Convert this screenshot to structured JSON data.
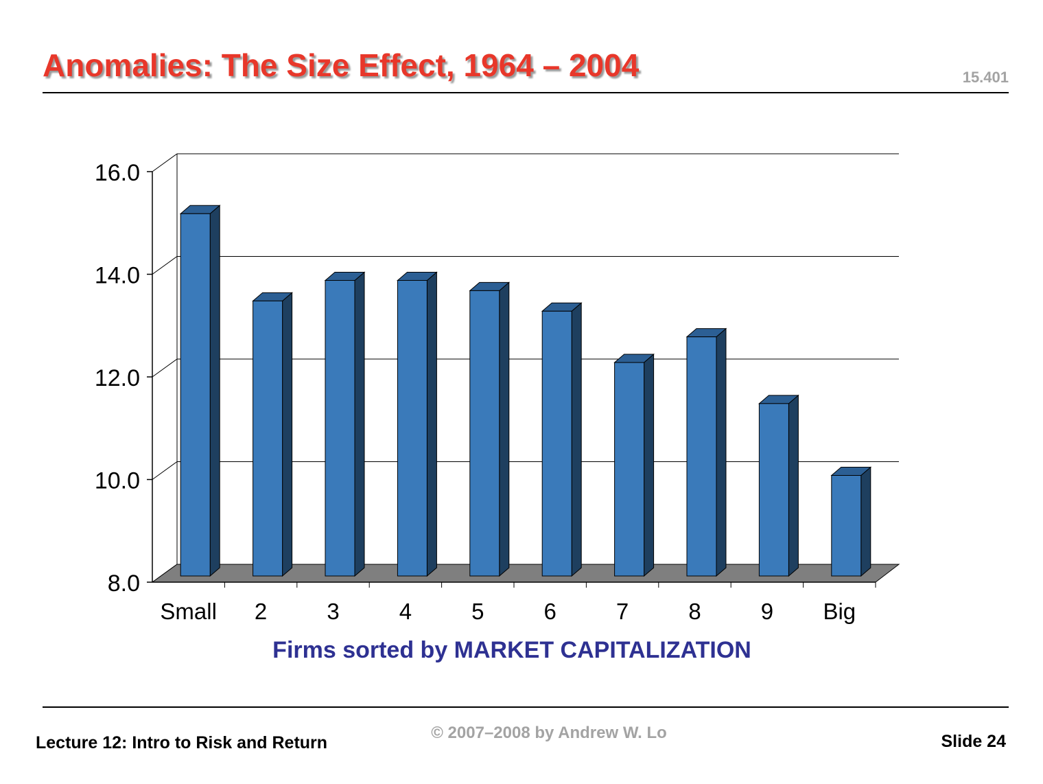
{
  "slide": {
    "title": "Anomalies: The Size Effect, 1964 – 2004",
    "course": "15.401",
    "footer_left": "Lecture 12: Intro to Risk and Return",
    "footer_center": "© 2007–2008 by Andrew W. Lo",
    "footer_right": "Slide 24"
  },
  "chart_data": {
    "type": "bar",
    "title": "",
    "xlabel": "Firms sorted by MARKET CAPITALIZATION",
    "ylabel": "",
    "categories": [
      "Small",
      "2",
      "3",
      "4",
      "5",
      "6",
      "7",
      "8",
      "9",
      "Big"
    ],
    "values": [
      15.1,
      13.4,
      13.8,
      13.8,
      13.6,
      13.2,
      12.2,
      12.7,
      11.4,
      10.0
    ],
    "ylim": [
      8.0,
      16.0
    ],
    "yticks": [
      "8.0",
      "10.0",
      "12.0",
      "14.0",
      "16.0"
    ],
    "grid": true,
    "style_3d": true,
    "colors": {
      "bar_front": "#3a7aba",
      "bar_top": "#2c5f94",
      "bar_side": "#1e3f5f",
      "floor": "#7f7f7f",
      "xlabel": "#2e3192"
    }
  }
}
